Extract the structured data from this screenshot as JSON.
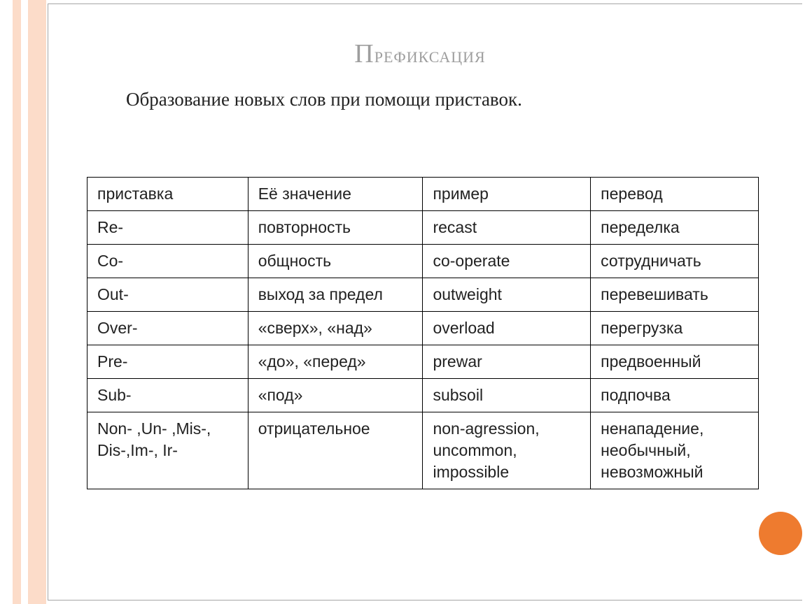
{
  "slide": {
    "title_first": "П",
    "title_rest": "рефиксация",
    "subtitle": "Образование новых слов при помощи приставок.",
    "accent_color": "#ee7b2f",
    "band_color": "#fcdcc9",
    "title_color": "#9e9e9e"
  },
  "table": {
    "columns": [
      "приставка",
      "Её значение",
      "пример",
      "перевод"
    ],
    "rows": [
      [
        "Re-",
        "повторность",
        "recast",
        "переделка"
      ],
      [
        "Co-",
        "общность",
        "co-operate",
        "сотрудничать"
      ],
      [
        "Out-",
        "выход за предел",
        "outweight",
        "перевешивать"
      ],
      [
        "Over-",
        "«сверх», «над»",
        "overload",
        "перегрузка"
      ],
      [
        "Pre-",
        "«до», «перед»",
        "prewar",
        "предвоенный"
      ],
      [
        "Sub-",
        "«под»",
        "subsoil",
        "подпочва"
      ],
      [
        "Non- ,Un- ,Mis-, Dis-,Im-, Ir-",
        "отрицательное",
        "non-agression, uncommon, impossible",
        "ненападение, необычный, невозможный"
      ]
    ]
  }
}
